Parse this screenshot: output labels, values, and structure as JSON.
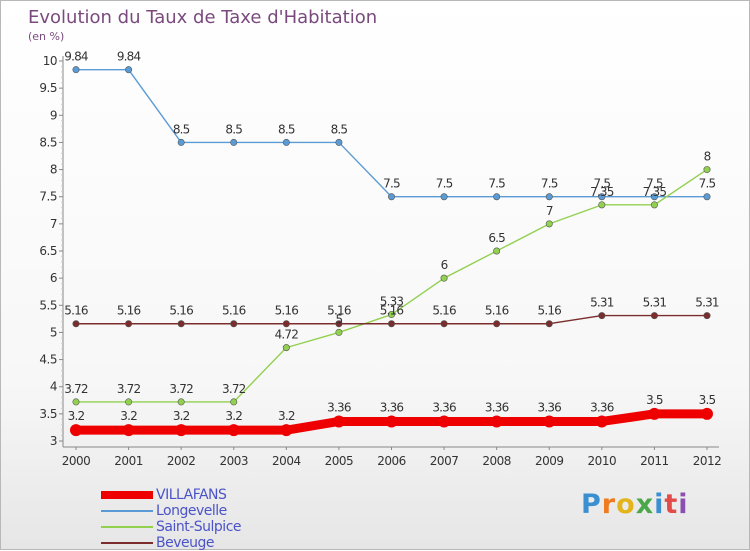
{
  "title": "Evolution du Taux de Taxe d'Habitation",
  "unit": "(en %)",
  "brand": "Proxiti",
  "chart_data": {
    "type": "line",
    "title": "Evolution du Taux de Taxe d'Habitation",
    "subtitle": "(en %)",
    "categories": [
      "2000",
      "2001",
      "2002",
      "2003",
      "2004",
      "2005",
      "2006",
      "2007",
      "2008",
      "2009",
      "2010",
      "2011",
      "2012"
    ],
    "ylim": [
      3,
      10
    ],
    "yticks": [
      "3",
      "3.5",
      "4",
      "4.5",
      "5",
      "5.5",
      "6",
      "6.5",
      "7",
      "7.5",
      "8",
      "8.5",
      "9",
      "9.5",
      "10"
    ],
    "grid": false,
    "legend_position": "bottom-left",
    "series": [
      {
        "name": "VILLAFANS",
        "color": "#ee0000",
        "values": [
          3.2,
          3.2,
          3.2,
          3.2,
          3.2,
          3.36,
          3.36,
          3.36,
          3.36,
          3.36,
          3.36,
          3.5,
          3.5
        ],
        "labels": [
          "3.2",
          "3.2",
          "3.2",
          "3.2",
          "3.2",
          "3.36",
          "3.36",
          "3.36",
          "3.36",
          "3.36",
          "3.36",
          "3.5",
          "3.5"
        ]
      },
      {
        "name": "Longevelle",
        "color": "#5b9bd5",
        "values": [
          9.84,
          9.84,
          8.5,
          8.5,
          8.5,
          8.5,
          7.5,
          7.5,
          7.5,
          7.5,
          7.5,
          7.5,
          7.5
        ],
        "labels": [
          "9.84",
          "9.84",
          "8.5",
          "8.5",
          "8.5",
          "8.5",
          "7.5",
          "7.5",
          "7.5",
          "7.5",
          "7.5",
          "7.5",
          "7.5"
        ]
      },
      {
        "name": "Saint-Sulpice",
        "color": "#92d050",
        "values": [
          3.72,
          3.72,
          3.72,
          3.72,
          4.72,
          5,
          5.33,
          6,
          6.5,
          7,
          7.35,
          7.35,
          8
        ],
        "labels": [
          "3.72",
          "3.72",
          "3.72",
          "3.72",
          "4.72",
          "5",
          "5.33",
          "6",
          "6.5",
          "7",
          "7.35",
          "7.35",
          "8"
        ]
      },
      {
        "name": "Beveuge",
        "color": "#7b2d2d",
        "values": [
          5.16,
          5.16,
          5.16,
          5.16,
          5.16,
          5.16,
          5.16,
          5.16,
          5.16,
          5.16,
          5.31,
          5.31,
          5.31
        ],
        "labels": [
          "5.16",
          "5.16",
          "5.16",
          "5.16",
          "5.16",
          "5.16",
          "5.16",
          "5.16",
          "5.16",
          "5.16",
          "5.31",
          "5.31",
          "5.31"
        ]
      }
    ]
  }
}
